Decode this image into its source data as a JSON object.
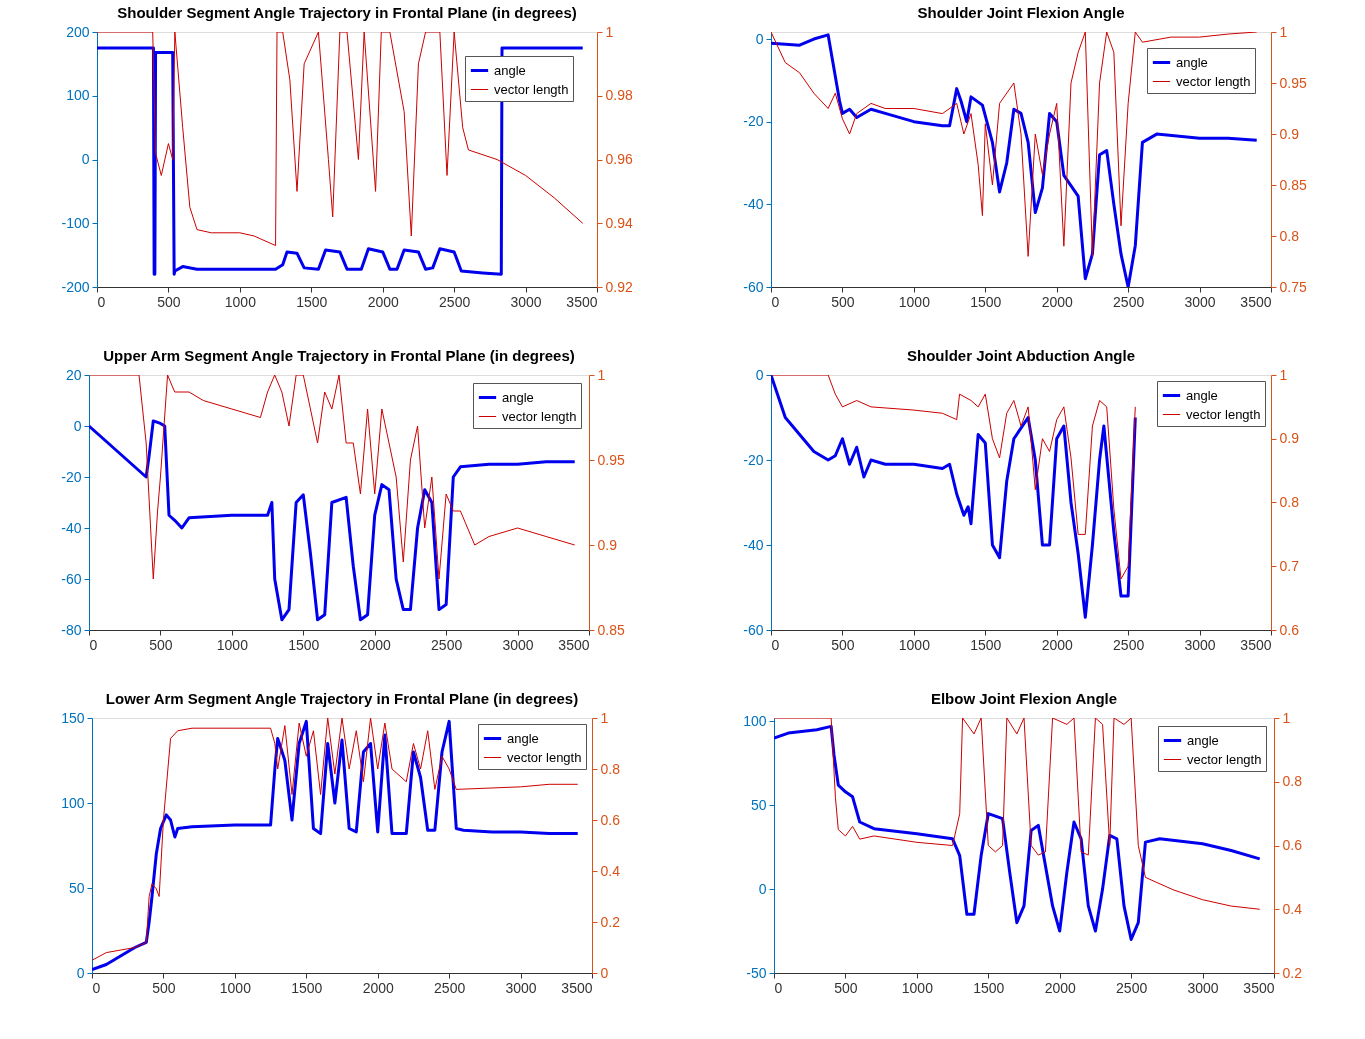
{
  "chart_data": [
    {
      "type": "line",
      "title": "Shoulder Segment Angle Trajectory in Frontal Plane (in degrees)",
      "xlim": [
        0,
        3500
      ],
      "xticks": [
        0,
        500,
        1000,
        1500,
        2000,
        2500,
        3000,
        3500
      ],
      "ylim": [
        -200,
        200
      ],
      "yticks": [
        -200,
        -100,
        0,
        100,
        200
      ],
      "y2lim": [
        0.92,
        1
      ],
      "y2ticks": [
        0.92,
        0.94,
        0.96,
        0.98,
        1
      ],
      "legend": "top right",
      "series": [
        {
          "name": "angle",
          "color": "#0000ee",
          "x": [
            0,
            395,
            400,
            405,
            410,
            530,
            540,
            545,
            600,
            700,
            1000,
            1250,
            1300,
            1330,
            1400,
            1450,
            1550,
            1600,
            1700,
            1750,
            1850,
            1900,
            2000,
            2050,
            2100,
            2150,
            2250,
            2300,
            2350,
            2400,
            2500,
            2550,
            2700,
            2830,
            2835,
            2840,
            3400
          ],
          "values": [
            175,
            175,
            -180,
            -180,
            168,
            168,
            -180,
            -175,
            -168,
            -172,
            -172,
            -172,
            -165,
            -145,
            -147,
            -170,
            -172,
            -142,
            -145,
            -172,
            -172,
            -140,
            -145,
            -172,
            -172,
            -142,
            -145,
            -172,
            -170,
            -140,
            -145,
            -175,
            -178,
            -180,
            175,
            175,
            175
          ]
        },
        {
          "name": "vector length",
          "color": "#cc0000",
          "axis": "y2",
          "x": [
            0,
            390,
            410,
            450,
            500,
            530,
            545,
            600,
            650,
            700,
            800,
            1000,
            1100,
            1250,
            1260,
            1300,
            1350,
            1400,
            1450,
            1550,
            1620,
            1650,
            1700,
            1750,
            1830,
            1870,
            1950,
            1990,
            2050,
            2150,
            2200,
            2250,
            2300,
            2400,
            2450,
            2500,
            2560,
            2600,
            2800,
            3000,
            3200,
            3400
          ],
          "values": [
            1,
            1,
            0.962,
            0.955,
            0.965,
            0.96,
            1,
            0.97,
            0.945,
            0.938,
            0.937,
            0.937,
            0.936,
            0.933,
            1,
            1,
            0.985,
            0.95,
            0.99,
            1,
            0.96,
            0.942,
            1,
            1,
            0.96,
            1,
            0.95,
            1,
            1,
            0.975,
            0.936,
            0.99,
            1,
            1,
            0.955,
            1,
            0.97,
            0.963,
            0.96,
            0.955,
            0.948,
            0.94
          ]
        }
      ]
    },
    {
      "type": "line",
      "title": "Shoulder Joint Flexion Angle",
      "xlim": [
        0,
        3500
      ],
      "xticks": [
        0,
        500,
        1000,
        1500,
        2000,
        2500,
        3000,
        3500
      ],
      "ylim": [
        -60,
        1.7
      ],
      "yticks": [
        -60,
        -40,
        -20,
        0
      ],
      "y2lim": [
        0.75,
        1
      ],
      "y2ticks": [
        0.75,
        0.8,
        0.85,
        0.9,
        0.95,
        1
      ],
      "legend": "top right",
      "series": [
        {
          "name": "angle",
          "color": "#0000ee",
          "x": [
            0,
            200,
            300,
            400,
            430,
            480,
            500,
            550,
            600,
            700,
            800,
            1000,
            1200,
            1250,
            1300,
            1330,
            1370,
            1400,
            1480,
            1550,
            1600,
            1650,
            1700,
            1750,
            1800,
            1850,
            1900,
            1950,
            2000,
            2050,
            2150,
            2200,
            2250,
            2300,
            2350,
            2400,
            2450,
            2500,
            2550,
            2600,
            2700,
            3000,
            3200,
            3400
          ],
          "values": [
            -1,
            -1.5,
            0,
            1,
            -5,
            -15,
            -18,
            -17,
            -19,
            -17,
            -18,
            -20,
            -21,
            -21,
            -12,
            -15,
            -20,
            -14,
            -16,
            -25,
            -37,
            -30,
            -17,
            -18,
            -25,
            -42,
            -36,
            -18,
            -20,
            -33,
            -38,
            -58,
            -52,
            -28,
            -27,
            -40,
            -52,
            -60,
            -50,
            -25,
            -23,
            -24,
            -24,
            -24.5
          ]
        },
        {
          "name": "vector length",
          "color": "#cc0000",
          "axis": "y2",
          "x": [
            0,
            100,
            200,
            300,
            400,
            450,
            500,
            550,
            600,
            700,
            800,
            1000,
            1200,
            1300,
            1350,
            1400,
            1450,
            1480,
            1500,
            1550,
            1600,
            1700,
            1750,
            1800,
            1850,
            1900,
            1950,
            2000,
            2050,
            2100,
            2150,
            2200,
            2250,
            2300,
            2350,
            2400,
            2450,
            2500,
            2550,
            2600,
            2800,
            3000,
            3200,
            3400
          ],
          "values": [
            1,
            0.97,
            0.96,
            0.94,
            0.925,
            0.94,
            0.915,
            0.9,
            0.92,
            0.93,
            0.925,
            0.925,
            0.92,
            0.93,
            0.9,
            0.92,
            0.87,
            0.82,
            0.91,
            0.85,
            0.93,
            0.95,
            0.9,
            0.78,
            0.9,
            0.86,
            0.9,
            0.93,
            0.79,
            0.95,
            0.98,
            1,
            0.78,
            0.95,
            1,
            0.98,
            0.81,
            0.93,
            1,
            0.99,
            0.995,
            0.995,
            0.998,
            1
          ]
        }
      ]
    },
    {
      "type": "line",
      "title": "Upper Arm Segment Angle Trajectory in Frontal Plane (in degrees)",
      "xlim": [
        0,
        3500
      ],
      "xticks": [
        0,
        500,
        1000,
        1500,
        2000,
        2500,
        3000,
        3500
      ],
      "ylim": [
        -80,
        20
      ],
      "yticks": [
        -80,
        -60,
        -40,
        -20,
        0,
        20
      ],
      "y2lim": [
        0.85,
        1
      ],
      "y2ticks": [
        0.85,
        0.9,
        0.95,
        1
      ],
      "legend": "top right",
      "series": [
        {
          "name": "angle",
          "color": "#0000ee",
          "x": [
            0,
            100,
            200,
            300,
            400,
            420,
            450,
            500,
            530,
            560,
            600,
            650,
            700,
            1000,
            1250,
            1280,
            1300,
            1350,
            1400,
            1450,
            1500,
            1550,
            1600,
            1650,
            1700,
            1800,
            1850,
            1900,
            1950,
            2000,
            2050,
            2100,
            2150,
            2200,
            2250,
            2300,
            2350,
            2400,
            2450,
            2500,
            2550,
            2600,
            2800,
            3000,
            3200,
            3400
          ],
          "values": [
            0,
            -5,
            -10,
            -15,
            -20,
            -12,
            2,
            1,
            0,
            -35,
            -37,
            -40,
            -36,
            -35,
            -35,
            -30,
            -60,
            -76,
            -72,
            -30,
            -27,
            -50,
            -76,
            -74,
            -30,
            -28,
            -55,
            -76,
            -74,
            -35,
            -23,
            -25,
            -60,
            -72,
            -72,
            -40,
            -25,
            -30,
            -72,
            -70,
            -20,
            -16,
            -15,
            -15,
            -14,
            -14
          ]
        },
        {
          "name": "vector length",
          "color": "#cc0000",
          "axis": "y2",
          "x": [
            0,
            350,
            400,
            450,
            480,
            500,
            550,
            600,
            700,
            800,
            1000,
            1200,
            1250,
            1300,
            1350,
            1400,
            1450,
            1500,
            1600,
            1650,
            1700,
            1750,
            1800,
            1850,
            1900,
            1950,
            2000,
            2050,
            2100,
            2150,
            2200,
            2250,
            2300,
            2350,
            2400,
            2450,
            2500,
            2550,
            2600,
            2700,
            2800,
            3000,
            3200,
            3400
          ],
          "values": [
            1,
            1,
            0.96,
            0.88,
            0.92,
            0.94,
            1,
            0.99,
            0.99,
            0.985,
            0.98,
            0.975,
            0.99,
            1,
            0.99,
            0.97,
            1,
            1,
            0.96,
            0.99,
            0.98,
            1,
            0.96,
            0.96,
            0.93,
            0.98,
            0.93,
            0.98,
            0.96,
            0.94,
            0.89,
            0.95,
            0.97,
            0.91,
            0.94,
            0.88,
            0.93,
            0.92,
            0.92,
            0.9,
            0.905,
            0.91,
            0.905,
            0.9
          ]
        }
      ]
    },
    {
      "type": "line",
      "title": "Shoulder Joint Abduction Angle",
      "xlim": [
        0,
        3500
      ],
      "xticks": [
        0,
        500,
        1000,
        1500,
        2000,
        2500,
        3000,
        3500
      ],
      "ylim": [
        -60,
        0
      ],
      "yticks": [
        -60,
        -40,
        -20,
        0
      ],
      "y2lim": [
        0.6,
        1
      ],
      "y2ticks": [
        0.6,
        0.7,
        0.8,
        0.9,
        1
      ],
      "legend": "top right",
      "series": [
        {
          "name": "angle",
          "color": "#0000ee",
          "x": [
            0,
            50,
            100,
            200,
            300,
            400,
            450,
            500,
            550,
            600,
            650,
            700,
            800,
            1000,
            1200,
            1250,
            1300,
            1350,
            1380,
            1400,
            1450,
            1500,
            1550,
            1600,
            1650,
            1700,
            1800,
            1850,
            1900,
            1950,
            2000,
            2050,
            2100,
            2150,
            2200,
            2250,
            2300,
            2330,
            2400,
            2450,
            2500,
            2550
          ],
          "values": [
            0,
            -5,
            -10,
            -14,
            -18,
            -20,
            -19,
            -15,
            -21,
            -17,
            -24,
            -20,
            -21,
            -21,
            -22,
            -21,
            -28,
            -33,
            -31,
            -35,
            -14,
            -16,
            -40,
            -43,
            -25,
            -15,
            -10,
            -20,
            -40,
            -40,
            -15,
            -12,
            -30,
            -42,
            -57,
            -40,
            -20,
            -12,
            -37,
            -52,
            -52,
            -10
          ]
        },
        {
          "name": "vector length",
          "color": "#cc0000",
          "axis": "y2",
          "x": [
            0,
            400,
            450,
            500,
            600,
            700,
            1000,
            1200,
            1300,
            1320,
            1400,
            1450,
            1500,
            1550,
            1600,
            1650,
            1700,
            1750,
            1800,
            1850,
            1900,
            1950,
            2000,
            2050,
            2100,
            2150,
            2200,
            2250,
            2300,
            2350,
            2400,
            2450,
            2500,
            2550
          ],
          "values": [
            1,
            1,
            0.97,
            0.95,
            0.96,
            0.95,
            0.945,
            0.94,
            0.93,
            0.97,
            0.96,
            0.95,
            0.97,
            0.9,
            0.87,
            0.94,
            0.96,
            0.92,
            0.95,
            0.82,
            0.9,
            0.88,
            0.93,
            0.95,
            0.87,
            0.75,
            0.75,
            0.92,
            0.96,
            0.95,
            0.79,
            0.68,
            0.7,
            0.95
          ]
        }
      ]
    },
    {
      "type": "line",
      "title": "Lower Arm Segment Angle Trajectory in Frontal Plane (in degrees)",
      "xlim": [
        0,
        3500
      ],
      "xticks": [
        0,
        500,
        1000,
        1500,
        2000,
        2500,
        3000,
        3500
      ],
      "ylim": [
        0,
        150
      ],
      "yticks": [
        0,
        50,
        100,
        150
      ],
      "y2lim": [
        0,
        1
      ],
      "y2ticks": [
        0,
        0.2,
        0.4,
        0.6,
        0.8,
        1
      ],
      "legend": "top right",
      "series": [
        {
          "name": "angle",
          "color": "#0000ee",
          "x": [
            0,
            100,
            200,
            300,
            380,
            400,
            420,
            450,
            480,
            520,
            550,
            580,
            600,
            700,
            1000,
            1250,
            1280,
            1300,
            1350,
            1400,
            1450,
            1500,
            1550,
            1600,
            1650,
            1700,
            1750,
            1800,
            1850,
            1900,
            1950,
            2000,
            2050,
            2100,
            2200,
            2250,
            2300,
            2350,
            2400,
            2450,
            2500,
            2550,
            2600,
            2800,
            3000,
            3200,
            3400
          ],
          "values": [
            2,
            5,
            10,
            15,
            18,
            30,
            45,
            70,
            85,
            93,
            90,
            80,
            85,
            86,
            87,
            87,
            120,
            138,
            125,
            90,
            135,
            148,
            85,
            82,
            135,
            100,
            137,
            85,
            83,
            130,
            135,
            83,
            140,
            82,
            82,
            130,
            115,
            84,
            84,
            130,
            148,
            85,
            84,
            83,
            83,
            82,
            82
          ]
        },
        {
          "name": "vector length",
          "color": "#cc0000",
          "axis": "y2",
          "x": [
            0,
            100,
            300,
            380,
            400,
            420,
            450,
            470,
            500,
            550,
            600,
            700,
            1000,
            1250,
            1280,
            1300,
            1350,
            1400,
            1450,
            1500,
            1550,
            1600,
            1650,
            1700,
            1750,
            1800,
            1850,
            1900,
            1950,
            2000,
            2050,
            2100,
            2200,
            2250,
            2300,
            2350,
            2400,
            2450,
            2500,
            2550,
            3000,
            3200,
            3400
          ],
          "values": [
            0.05,
            0.08,
            0.1,
            0.12,
            0.3,
            0.35,
            0.33,
            0.3,
            0.6,
            0.92,
            0.95,
            0.96,
            0.96,
            0.96,
            0.9,
            0.8,
            0.97,
            0.7,
            0.98,
            0.85,
            0.95,
            0.7,
            1,
            0.78,
            1,
            0.8,
            0.95,
            0.75,
            1,
            0.8,
            0.98,
            0.8,
            0.75,
            0.9,
            0.8,
            0.95,
            0.72,
            0.85,
            0.8,
            0.72,
            0.73,
            0.74,
            0.74
          ]
        }
      ]
    },
    {
      "type": "line",
      "title": "Elbow Joint Flexion Angle",
      "xlim": [
        0,
        3500
      ],
      "xticks": [
        0,
        500,
        1000,
        1500,
        2000,
        2500,
        3000,
        3500
      ],
      "ylim": [
        -50,
        102
      ],
      "yticks": [
        -50,
        0,
        50,
        100
      ],
      "y2lim": [
        0.2,
        1
      ],
      "y2ticks": [
        0.2,
        0.4,
        0.6,
        0.8,
        1
      ],
      "legend": "top right",
      "series": [
        {
          "name": "angle",
          "color": "#0000ee",
          "x": [
            0,
            100,
            300,
            400,
            420,
            450,
            500,
            550,
            600,
            700,
            1000,
            1250,
            1300,
            1350,
            1400,
            1450,
            1500,
            1600,
            1650,
            1700,
            1750,
            1800,
            1850,
            1950,
            2000,
            2050,
            2100,
            2150,
            2200,
            2250,
            2300,
            2350,
            2400,
            2450,
            2500,
            2550,
            2600,
            2700,
            3000,
            3200,
            3400
          ],
          "values": [
            90,
            93,
            95,
            97,
            80,
            62,
            58,
            55,
            40,
            36,
            33,
            30,
            20,
            -15,
            -15,
            20,
            45,
            42,
            10,
            -20,
            -10,
            35,
            38,
            -10,
            -25,
            10,
            40,
            30,
            -10,
            -25,
            0,
            32,
            30,
            -10,
            -30,
            -20,
            28,
            30,
            27,
            23,
            18
          ]
        },
        {
          "name": "vector length",
          "color": "#cc0000",
          "axis": "y2",
          "x": [
            0,
            400,
            430,
            450,
            500,
            550,
            600,
            700,
            1000,
            1250,
            1300,
            1320,
            1400,
            1450,
            1500,
            1550,
            1600,
            1630,
            1700,
            1750,
            1800,
            1850,
            1900,
            1950,
            2050,
            2100,
            2150,
            2200,
            2250,
            2300,
            2350,
            2380,
            2450,
            2500,
            2550,
            2600,
            2800,
            3000,
            3200,
            3400
          ],
          "values": [
            1,
            1,
            0.75,
            0.65,
            0.63,
            0.66,
            0.62,
            0.63,
            0.61,
            0.6,
            0.7,
            1,
            0.95,
            1,
            0.6,
            0.58,
            0.6,
            1,
            0.95,
            1,
            0.6,
            0.57,
            0.58,
            1,
            0.98,
            1,
            0.58,
            0.57,
            1,
            0.98,
            0.6,
            1,
            0.98,
            1,
            0.6,
            0.5,
            0.46,
            0.43,
            0.41,
            0.4
          ]
        }
      ]
    }
  ]
}
